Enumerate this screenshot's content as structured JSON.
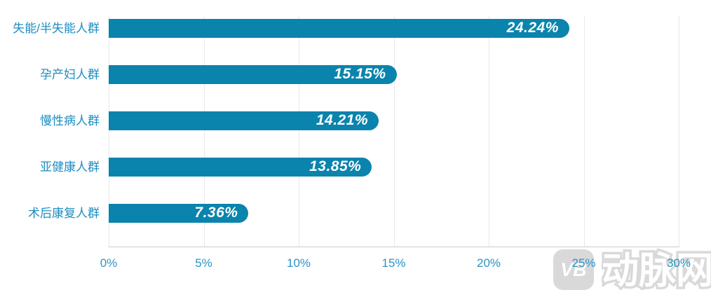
{
  "chart_data": {
    "type": "bar",
    "orientation": "horizontal",
    "title": "",
    "categories": [
      "失能/半失能人群",
      "孕产妇人群",
      "慢性病人群",
      "亚健康人群",
      "术后康复人群"
    ],
    "values": [
      24.24,
      15.15,
      14.21,
      13.85,
      7.36
    ],
    "value_labels": [
      "24.24%",
      "15.15%",
      "14.21%",
      "13.85%",
      "7.36%"
    ],
    "x_ticks": [
      "0%",
      "5%",
      "10%",
      "15%",
      "20%",
      "25%",
      "30%"
    ],
    "x_tick_values": [
      0,
      5,
      10,
      15,
      20,
      25,
      30
    ],
    "xlim": [
      0,
      30
    ],
    "grid": true,
    "legend": false,
    "bar_color": "#0a84ad",
    "category_label_color": "#1d8dc1",
    "tick_label_color": "#2b93c6",
    "value_label_color": "#ffffff"
  },
  "watermark": {
    "logo_text": "VB",
    "brand_text": "动脉网",
    "color": "#d9d9d9"
  }
}
